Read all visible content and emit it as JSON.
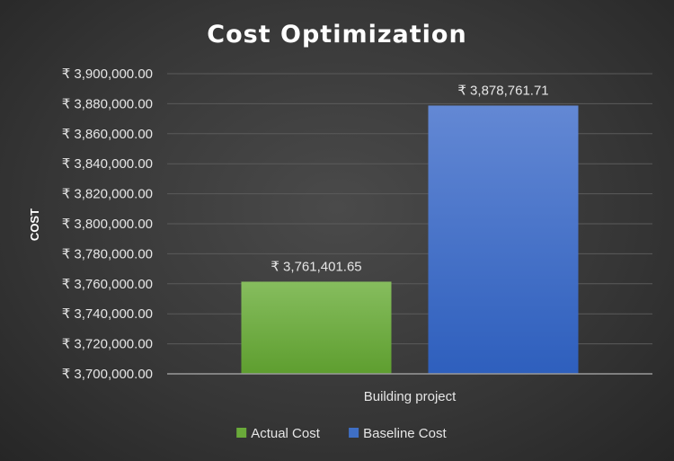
{
  "chart_data": {
    "type": "bar",
    "title": "Cost Optimization",
    "xlabel": "",
    "ylabel": "COST",
    "categories": [
      "Building project"
    ],
    "series": [
      {
        "name": "Actual Cost",
        "values": [
          3761401.65
        ],
        "value_labels": [
          "₹ 3,761,401.65"
        ],
        "color": "#6aaa3a"
      },
      {
        "name": "Baseline Cost",
        "values": [
          3878761.71
        ],
        "value_labels": [
          "₹ 3,878,761.71"
        ],
        "color": "#3f6fc5"
      }
    ],
    "ylim": [
      3700000,
      3900000
    ],
    "y_ticks": [
      {
        "value": 3700000,
        "label": "₹ 3,700,000.00"
      },
      {
        "value": 3720000,
        "label": "₹ 3,720,000.00"
      },
      {
        "value": 3740000,
        "label": "₹ 3,740,000.00"
      },
      {
        "value": 3760000,
        "label": "₹ 3,760,000.00"
      },
      {
        "value": 3780000,
        "label": "₹ 3,780,000.00"
      },
      {
        "value": 3800000,
        "label": "₹ 3,800,000.00"
      },
      {
        "value": 3820000,
        "label": "₹ 3,820,000.00"
      },
      {
        "value": 3840000,
        "label": "₹ 3,840,000.00"
      },
      {
        "value": 3860000,
        "label": "₹ 3,860,000.00"
      },
      {
        "value": 3880000,
        "label": "₹ 3,880,000.00"
      },
      {
        "value": 3900000,
        "label": "₹ 3,900,000.00"
      }
    ],
    "grid": true,
    "legend_position": "bottom"
  }
}
